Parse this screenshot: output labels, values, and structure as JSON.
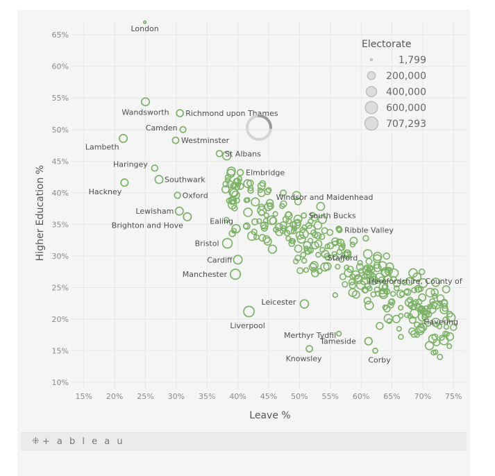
{
  "branding": {
    "logo_icon": "tableau-plus-icon",
    "logo_text": "+ a b l e a u"
  },
  "loading": {
    "icon": "loading-spinner-icon"
  },
  "colors": {
    "marker": "#7bb266",
    "grid": "#e6e6e6",
    "axis_text": "#8a8a8a",
    "title_text": "#555555",
    "label_text": "#4d4d4d"
  },
  "chart_data": {
    "type": "scatter",
    "xlabel": "Leave %",
    "ylabel": "Higher Education %",
    "xlim": [
      13,
      77
    ],
    "ylim": [
      9,
      67
    ],
    "xticks": [
      15,
      20,
      25,
      30,
      35,
      40,
      45,
      50,
      55,
      60,
      65,
      70,
      75
    ],
    "yticks": [
      10,
      15,
      20,
      25,
      30,
      35,
      40,
      45,
      50,
      55,
      60,
      65
    ],
    "tick_suffix": "%",
    "grid": true,
    "legend": {
      "title": "Electorate",
      "placement": "top-right",
      "entries": [
        {
          "label": "1,799",
          "value": 1799
        },
        {
          "label": "200,000",
          "value": 200000
        },
        {
          "label": "400,000",
          "value": 400000
        },
        {
          "label": "600,000",
          "value": 600000
        },
        {
          "label": "707,293",
          "value": 707293
        }
      ]
    },
    "labeled_points": [
      {
        "name": "London",
        "x": 24.9,
        "y": 67.0,
        "size": 1799
      },
      {
        "name": "Wandsworth",
        "x": 25.0,
        "y": 54.4,
        "size": 200000
      },
      {
        "name": "Richmond upon Thames",
        "x": 30.6,
        "y": 52.6,
        "size": 140000
      },
      {
        "name": "Camden",
        "x": 31.1,
        "y": 50.0,
        "size": 90000
      },
      {
        "name": "Westminster",
        "x": 29.9,
        "y": 48.3,
        "size": 110000
      },
      {
        "name": "Lambeth",
        "x": 21.4,
        "y": 48.6,
        "size": 200000
      },
      {
        "name": "St Albans",
        "x": 37.0,
        "y": 46.2,
        "size": 100000
      },
      {
        "name": "Haringey",
        "x": 26.5,
        "y": 43.9,
        "size": 100000
      },
      {
        "name": "Elmbridge",
        "x": 40.4,
        "y": 43.2,
        "size": 100000
      },
      {
        "name": "Southwark",
        "x": 27.2,
        "y": 42.1,
        "size": 200000
      },
      {
        "name": "Hackney",
        "x": 21.6,
        "y": 41.6,
        "size": 160000
      },
      {
        "name": "Oxford",
        "x": 30.2,
        "y": 39.6,
        "size": 100000
      },
      {
        "name": "Windsor and Maidenhead",
        "x": 45.3,
        "y": 37.9,
        "size": 100000
      },
      {
        "name": "Lewisham",
        "x": 30.5,
        "y": 37.1,
        "size": 200000
      },
      {
        "name": "South Bucks",
        "x": 50.7,
        "y": 36.4,
        "size": 60000
      },
      {
        "name": "Ealing",
        "x": 39.7,
        "y": 34.3,
        "size": 230000
      },
      {
        "name": "Brighton and Hove",
        "x": 31.8,
        "y": 36.2,
        "size": 200000
      },
      {
        "name": "Ribble Valley",
        "x": 56.5,
        "y": 34.1,
        "size": 60000
      },
      {
        "name": "Bristol",
        "x": 38.3,
        "y": 32.0,
        "size": 330000
      },
      {
        "name": "Stafford",
        "x": 55.0,
        "y": 31.6,
        "size": 100000
      },
      {
        "name": "Cardiff",
        "x": 40.0,
        "y": 29.4,
        "size": 250000
      },
      {
        "name": "Herefordshire, County of",
        "x": 60.5,
        "y": 26.0,
        "size": 150000
      },
      {
        "name": "Manchester",
        "x": 39.6,
        "y": 27.1,
        "size": 370000
      },
      {
        "name": "Leicester",
        "x": 50.8,
        "y": 22.4,
        "size": 230000
      },
      {
        "name": "Havering",
        "x": 69.7,
        "y": 18.5,
        "size": 200000
      },
      {
        "name": "Liverpool",
        "x": 41.8,
        "y": 21.2,
        "size": 400000
      },
      {
        "name": "Merthyr Tydfil",
        "x": 56.4,
        "y": 17.7,
        "size": 45000
      },
      {
        "name": "Tameside",
        "x": 61.2,
        "y": 16.5,
        "size": 170000
      },
      {
        "name": "Knowsley",
        "x": 51.6,
        "y": 15.3,
        "size": 110000
      },
      {
        "name": "Corby",
        "x": 62.3,
        "y": 15.0,
        "size": 50000
      }
    ]
  }
}
